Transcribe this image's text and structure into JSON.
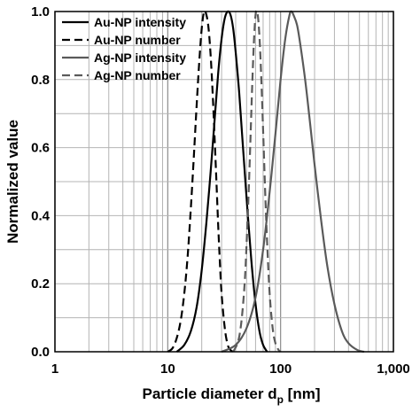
{
  "chart_data": {
    "type": "line",
    "title": "",
    "xlabel": "Particle diameter d",
    "xlabel_sub": "p",
    "xlabel_unit": " [nm]",
    "ylabel": "Normalized value",
    "xscale": "log",
    "xlim": [
      1,
      1000
    ],
    "ylim": [
      0,
      1.0
    ],
    "x_tick_values": [
      1,
      10,
      100,
      1000
    ],
    "x_tick_labels": [
      "1",
      "10",
      "100",
      "1,000"
    ],
    "y_tick_values": [
      0,
      0.2,
      0.4,
      0.6,
      0.8,
      1.0
    ],
    "y_tick_labels": [
      "0.0",
      "0.2",
      "0.4",
      "0.6",
      "0.8",
      "1.0"
    ],
    "grid": true,
    "legend_position": "top-left",
    "series": [
      {
        "name": "Au-NP intensity",
        "color": "#000000",
        "dash": "solid",
        "x": [
          12,
          14,
          16,
          18,
          20,
          22,
          24,
          26,
          28,
          30,
          32,
          34,
          36,
          38,
          40,
          43,
          46,
          50,
          55,
          60,
          65,
          70,
          76
        ],
        "y": [
          0.0,
          0.02,
          0.06,
          0.13,
          0.24,
          0.38,
          0.53,
          0.68,
          0.82,
          0.92,
          0.98,
          1.0,
          0.99,
          0.95,
          0.88,
          0.76,
          0.62,
          0.45,
          0.27,
          0.14,
          0.06,
          0.02,
          0.0
        ]
      },
      {
        "name": "Au-NP number",
        "color": "#000000",
        "dash": "dashed",
        "x": [
          10,
          11,
          12,
          13,
          14,
          15,
          16,
          17,
          18,
          19,
          20,
          21,
          22,
          23,
          24,
          25,
          26,
          27,
          28,
          29,
          30,
          32,
          34,
          36,
          38
        ],
        "y": [
          0.0,
          0.01,
          0.04,
          0.09,
          0.17,
          0.28,
          0.42,
          0.57,
          0.72,
          0.85,
          0.95,
          1.0,
          0.99,
          0.95,
          0.87,
          0.76,
          0.63,
          0.5,
          0.37,
          0.26,
          0.17,
          0.07,
          0.02,
          0.005,
          0.0
        ]
      },
      {
        "name": "Ag-NP intensity",
        "color": "#5a5a5a",
        "dash": "solid",
        "x": [
          30,
          40,
          50,
          60,
          70,
          80,
          90,
          100,
          110,
          120,
          125,
          130,
          140,
          150,
          165,
          180,
          200,
          230,
          260,
          300,
          350,
          400,
          480,
          550
        ],
        "y": [
          0.0,
          0.02,
          0.07,
          0.16,
          0.3,
          0.47,
          0.64,
          0.8,
          0.92,
          0.99,
          1.0,
          0.99,
          0.96,
          0.9,
          0.8,
          0.69,
          0.55,
          0.38,
          0.25,
          0.14,
          0.06,
          0.025,
          0.005,
          0.0
        ]
      },
      {
        "name": "Ag-NP number",
        "color": "#5a5a5a",
        "dash": "dashed",
        "x": [
          38,
          42,
          45,
          48,
          50,
          52,
          54,
          56,
          58,
          60,
          62,
          64,
          66,
          68,
          70,
          73,
          76,
          80,
          85,
          90,
          96,
          100
        ],
        "y": [
          0.0,
          0.03,
          0.09,
          0.2,
          0.32,
          0.46,
          0.62,
          0.78,
          0.91,
          0.99,
          1.0,
          0.96,
          0.88,
          0.77,
          0.65,
          0.47,
          0.32,
          0.17,
          0.07,
          0.025,
          0.005,
          0.0
        ]
      }
    ]
  }
}
